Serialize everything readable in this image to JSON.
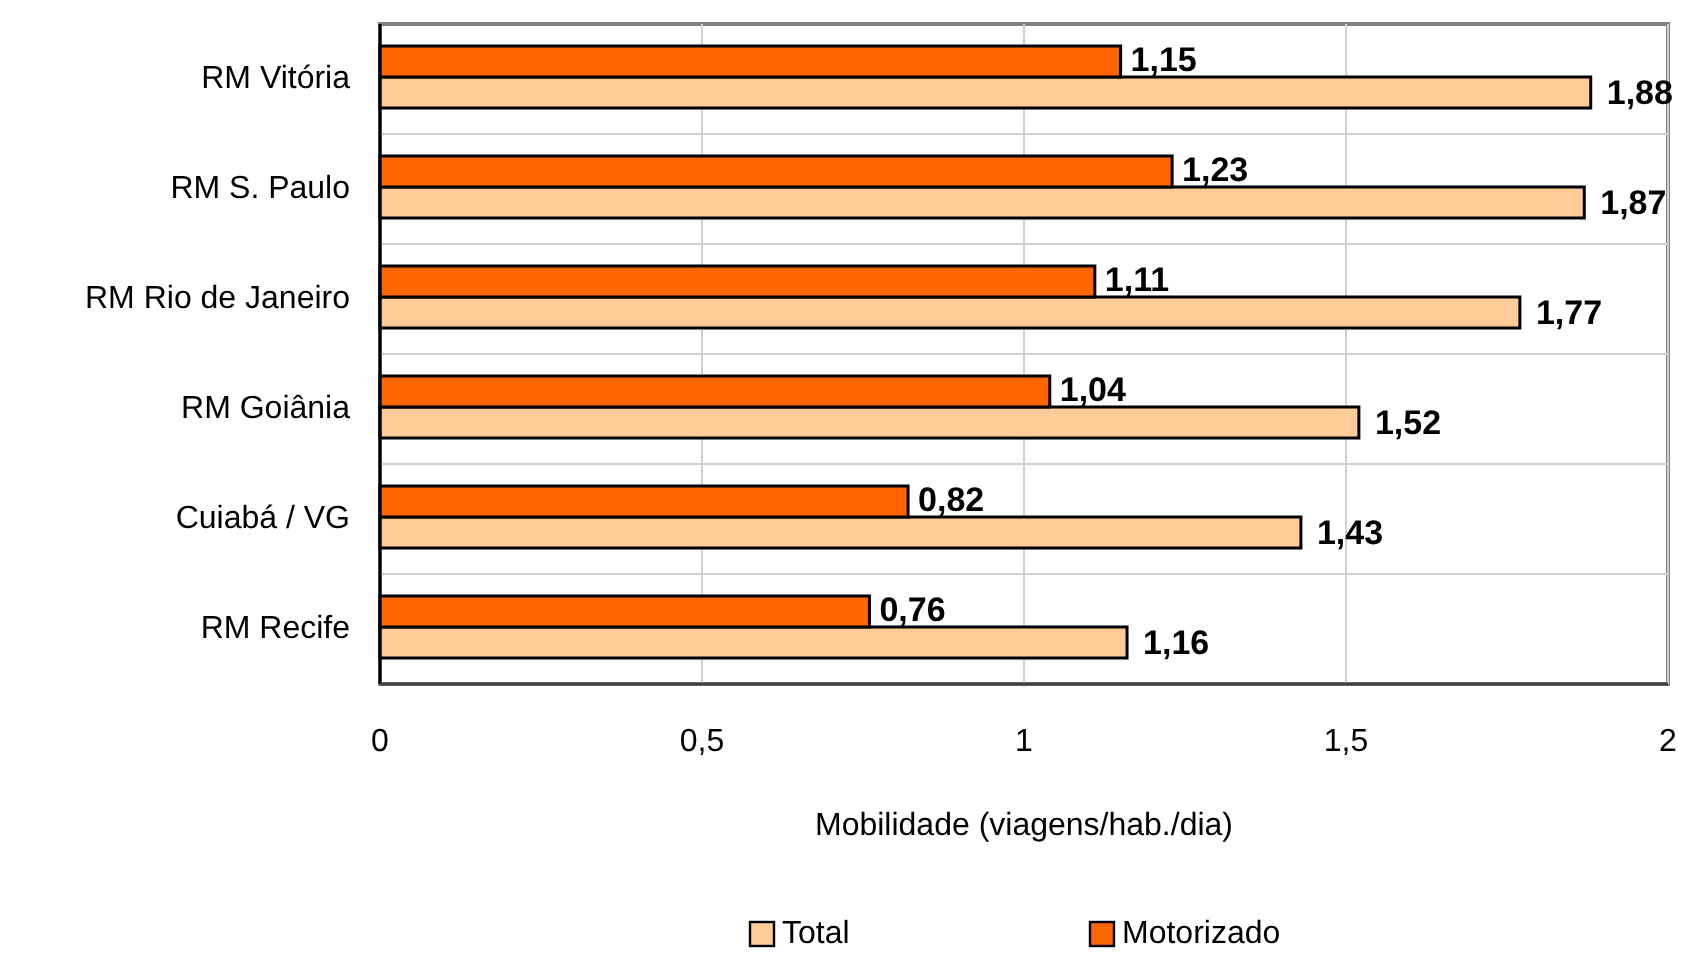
{
  "chart_data": {
    "type": "bar",
    "orientation": "horizontal",
    "xlabel": "Mobilidade (viagens/hab./dia)",
    "categories": [
      "RM Vitória",
      "RM S. Paulo",
      "RM Rio de Janeiro",
      "RM Goiânia",
      "Cuiabá / VG",
      "RM Recife"
    ],
    "series": [
      {
        "name": "Total",
        "color": "#ffcc99",
        "values": [
          1.88,
          1.87,
          1.77,
          1.52,
          1.43,
          1.16
        ],
        "value_labels": [
          "1,88",
          "1,87",
          "1,77",
          "1,52",
          "1,43",
          "1,16"
        ]
      },
      {
        "name": "Motorizado",
        "color": "#ff6600",
        "values": [
          1.15,
          1.23,
          1.11,
          1.04,
          0.82,
          0.76
        ],
        "value_labels": [
          "1,15",
          "1,23",
          "1,11",
          "1,04",
          "0,82",
          "0,76"
        ]
      }
    ],
    "xlim": [
      0,
      2
    ],
    "xticks": [
      0,
      {
        "value": 0.5,
        "label": "0,5"
      },
      1,
      {
        "value": 1.5,
        "label": "1,5"
      },
      2
    ],
    "grid": true,
    "legend": "bottom"
  }
}
